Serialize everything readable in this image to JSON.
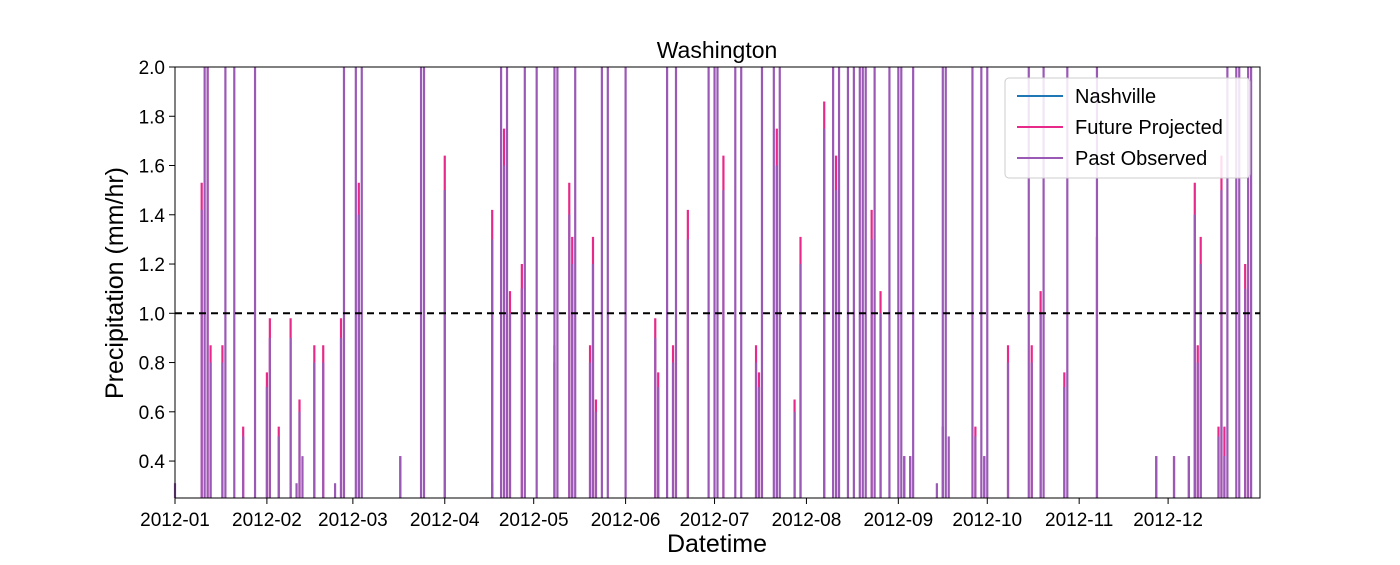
{
  "chart_data": {
    "type": "line",
    "title": "Washington",
    "xlabel": "Datetime",
    "ylabel": "Precipitation (mm/hr)",
    "ylim": [
      0.25,
      2.0
    ],
    "xlim": [
      "2012-01-01",
      "2012-12-31"
    ],
    "yticks": [
      0.4,
      0.6,
      0.8,
      1.0,
      1.2,
      1.4,
      1.6,
      1.8,
      2.0
    ],
    "ytick_labels": [
      "0.4",
      "0.6",
      "0.8",
      "1.0",
      "1.2",
      "1.4",
      "1.6",
      "1.8",
      "2.0"
    ],
    "xticks": [
      "2012-01-01",
      "2012-02-01",
      "2012-03-01",
      "2012-04-01",
      "2012-05-01",
      "2012-06-01",
      "2012-07-01",
      "2012-08-01",
      "2012-09-01",
      "2012-10-01",
      "2012-11-01",
      "2012-12-01"
    ],
    "xtick_labels": [
      "2012-01",
      "2012-02",
      "2012-03",
      "2012-04",
      "2012-05",
      "2012-06",
      "2012-07",
      "2012-08",
      "2012-09",
      "2012-10",
      "2012-11",
      "2012-12"
    ],
    "grid": false,
    "legend_position": "top-right",
    "threshold": {
      "y": 1.0,
      "style": "dashed",
      "color": "#000000"
    },
    "series": [
      {
        "name": "Nashville",
        "color": "#1f77b4",
        "events": []
      },
      {
        "name": "Future Projected",
        "color": "#e7298a",
        "events": [
          {
            "x": "2012-01-10",
            "y": 1.53
          },
          {
            "x": "2012-01-12",
            "y": 2.0
          },
          {
            "x": "2012-01-13",
            "y": 0.87
          },
          {
            "x": "2012-01-17",
            "y": 0.87
          },
          {
            "x": "2012-01-24",
            "y": 0.54
          },
          {
            "x": "2012-02-01",
            "y": 0.76
          },
          {
            "x": "2012-02-02",
            "y": 0.98
          },
          {
            "x": "2012-02-05",
            "y": 0.54
          },
          {
            "x": "2012-02-09",
            "y": 0.98
          },
          {
            "x": "2012-02-12",
            "y": 0.65
          },
          {
            "x": "2012-02-17",
            "y": 0.87
          },
          {
            "x": "2012-02-20",
            "y": 0.87
          },
          {
            "x": "2012-02-26",
            "y": 0.98
          },
          {
            "x": "2012-03-03",
            "y": 1.53
          },
          {
            "x": "2012-03-17",
            "y": 0.42
          },
          {
            "x": "2012-04-01",
            "y": 1.64
          },
          {
            "x": "2012-04-17",
            "y": 1.42
          },
          {
            "x": "2012-04-21",
            "y": 1.75
          },
          {
            "x": "2012-04-23",
            "y": 1.09
          },
          {
            "x": "2012-04-27",
            "y": 1.2
          },
          {
            "x": "2012-05-08",
            "y": 0.87
          },
          {
            "x": "2012-05-13",
            "y": 1.53
          },
          {
            "x": "2012-05-14",
            "y": 1.31
          },
          {
            "x": "2012-05-20",
            "y": 0.87
          },
          {
            "x": "2012-05-21",
            "y": 1.31
          },
          {
            "x": "2012-05-22",
            "y": 0.65
          },
          {
            "x": "2012-06-11",
            "y": 0.98
          },
          {
            "x": "2012-06-12",
            "y": 0.76
          },
          {
            "x": "2012-06-17",
            "y": 0.87
          },
          {
            "x": "2012-06-22",
            "y": 1.42
          },
          {
            "x": "2012-07-04",
            "y": 1.64
          },
          {
            "x": "2012-07-15",
            "y": 0.87
          },
          {
            "x": "2012-07-16",
            "y": 0.76
          },
          {
            "x": "2012-07-22",
            "y": 1.75
          },
          {
            "x": "2012-07-28",
            "y": 0.65
          },
          {
            "x": "2012-07-30",
            "y": 1.31
          },
          {
            "x": "2012-08-07",
            "y": 1.86
          },
          {
            "x": "2012-08-11",
            "y": 1.64
          },
          {
            "x": "2012-08-23",
            "y": 1.42
          },
          {
            "x": "2012-08-26",
            "y": 1.09
          },
          {
            "x": "2012-09-03",
            "y": 0.42
          },
          {
            "x": "2012-09-05",
            "y": 0.42
          },
          {
            "x": "2012-09-16",
            "y": 0.54
          },
          {
            "x": "2012-09-27",
            "y": 0.54
          },
          {
            "x": "2012-09-30",
            "y": 0.42
          },
          {
            "x": "2012-10-08",
            "y": 0.87
          },
          {
            "x": "2012-10-16",
            "y": 0.87
          },
          {
            "x": "2012-10-19",
            "y": 1.09
          },
          {
            "x": "2012-10-27",
            "y": 0.76
          },
          {
            "x": "2012-11-07",
            "y": 1.31
          },
          {
            "x": "2012-11-27",
            "y": 0.42
          },
          {
            "x": "2012-12-03",
            "y": 0.42
          },
          {
            "x": "2012-12-08",
            "y": 0.42
          },
          {
            "x": "2012-12-10",
            "y": 1.53
          },
          {
            "x": "2012-12-11",
            "y": 0.87
          },
          {
            "x": "2012-12-12",
            "y": 1.31
          },
          {
            "x": "2012-12-18",
            "y": 0.54
          },
          {
            "x": "2012-12-19",
            "y": 1.64
          },
          {
            "x": "2012-12-20",
            "y": 0.54
          },
          {
            "x": "2012-12-27",
            "y": 1.2
          }
        ]
      },
      {
        "name": "Past Observed",
        "color": "#9b59b6",
        "events": [
          {
            "x": "2012-01-01",
            "y": 0.31
          },
          {
            "x": "2012-01-10",
            "y": 1.42
          },
          {
            "x": "2012-01-11",
            "y": 2.0
          },
          {
            "x": "2012-01-12",
            "y": 2.0
          },
          {
            "x": "2012-01-13",
            "y": 0.8
          },
          {
            "x": "2012-01-17",
            "y": 0.8
          },
          {
            "x": "2012-01-18",
            "y": 2.0
          },
          {
            "x": "2012-01-21",
            "y": 2.0
          },
          {
            "x": "2012-01-24",
            "y": 0.5
          },
          {
            "x": "2012-01-28",
            "y": 2.0
          },
          {
            "x": "2012-02-01",
            "y": 0.7
          },
          {
            "x": "2012-02-02",
            "y": 0.9
          },
          {
            "x": "2012-02-05",
            "y": 0.5
          },
          {
            "x": "2012-02-09",
            "y": 0.9
          },
          {
            "x": "2012-02-11",
            "y": 0.31
          },
          {
            "x": "2012-02-12",
            "y": 0.6
          },
          {
            "x": "2012-02-13",
            "y": 0.42
          },
          {
            "x": "2012-02-17",
            "y": 0.8
          },
          {
            "x": "2012-02-20",
            "y": 0.8
          },
          {
            "x": "2012-02-24",
            "y": 0.31
          },
          {
            "x": "2012-02-26",
            "y": 0.9
          },
          {
            "x": "2012-02-27",
            "y": 2.0
          },
          {
            "x": "2012-03-02",
            "y": 2.0
          },
          {
            "x": "2012-03-03",
            "y": 1.4
          },
          {
            "x": "2012-03-04",
            "y": 2.0
          },
          {
            "x": "2012-03-17",
            "y": 0.42
          },
          {
            "x": "2012-03-24",
            "y": 2.0
          },
          {
            "x": "2012-03-25",
            "y": 2.0
          },
          {
            "x": "2012-04-01",
            "y": 1.5
          },
          {
            "x": "2012-04-17",
            "y": 1.3
          },
          {
            "x": "2012-04-17",
            "y": 0.31
          },
          {
            "x": "2012-04-20",
            "y": 2.0
          },
          {
            "x": "2012-04-21",
            "y": 1.6
          },
          {
            "x": "2012-04-22",
            "y": 2.0
          },
          {
            "x": "2012-04-23",
            "y": 1.0
          },
          {
            "x": "2012-04-27",
            "y": 1.1
          },
          {
            "x": "2012-04-28",
            "y": 2.0
          },
          {
            "x": "2012-05-02",
            "y": 2.0
          },
          {
            "x": "2012-05-08",
            "y": 0.8
          },
          {
            "x": "2012-05-08",
            "y": 2.0
          },
          {
            "x": "2012-05-09",
            "y": 2.0
          },
          {
            "x": "2012-05-13",
            "y": 1.4
          },
          {
            "x": "2012-05-14",
            "y": 1.2
          },
          {
            "x": "2012-05-15",
            "y": 2.0
          },
          {
            "x": "2012-05-20",
            "y": 0.8
          },
          {
            "x": "2012-05-21",
            "y": 1.2
          },
          {
            "x": "2012-05-22",
            "y": 0.6
          },
          {
            "x": "2012-05-24",
            "y": 2.0
          },
          {
            "x": "2012-05-26",
            "y": 2.0
          },
          {
            "x": "2012-06-01",
            "y": 2.0
          },
          {
            "x": "2012-06-11",
            "y": 0.9
          },
          {
            "x": "2012-06-12",
            "y": 0.7
          },
          {
            "x": "2012-06-15",
            "y": 2.0
          },
          {
            "x": "2012-06-17",
            "y": 0.8
          },
          {
            "x": "2012-06-18",
            "y": 2.0
          },
          {
            "x": "2012-06-22",
            "y": 1.3
          },
          {
            "x": "2012-06-29",
            "y": 2.0
          },
          {
            "x": "2012-07-01",
            "y": 2.0
          },
          {
            "x": "2012-07-02",
            "y": 2.0
          },
          {
            "x": "2012-07-04",
            "y": 1.5
          },
          {
            "x": "2012-07-08",
            "y": 2.0
          },
          {
            "x": "2012-07-10",
            "y": 2.0
          },
          {
            "x": "2012-07-15",
            "y": 0.8
          },
          {
            "x": "2012-07-16",
            "y": 0.7
          },
          {
            "x": "2012-07-17",
            "y": 2.0
          },
          {
            "x": "2012-07-21",
            "y": 2.0
          },
          {
            "x": "2012-07-22",
            "y": 1.6
          },
          {
            "x": "2012-07-23",
            "y": 2.0
          },
          {
            "x": "2012-07-28",
            "y": 0.6
          },
          {
            "x": "2012-07-30",
            "y": 1.2
          },
          {
            "x": "2012-08-07",
            "y": 1.75
          },
          {
            "x": "2012-08-10",
            "y": 2.0
          },
          {
            "x": "2012-08-11",
            "y": 1.5
          },
          {
            "x": "2012-08-12",
            "y": 2.0
          },
          {
            "x": "2012-08-15",
            "y": 2.0
          },
          {
            "x": "2012-08-17",
            "y": 2.0
          },
          {
            "x": "2012-08-19",
            "y": 2.0
          },
          {
            "x": "2012-08-20",
            "y": 2.0
          },
          {
            "x": "2012-08-21",
            "y": 2.0
          },
          {
            "x": "2012-08-23",
            "y": 1.3
          },
          {
            "x": "2012-08-24",
            "y": 2.0
          },
          {
            "x": "2012-08-26",
            "y": 1.0
          },
          {
            "x": "2012-08-29",
            "y": 2.0
          },
          {
            "x": "2012-09-01",
            "y": 2.0
          },
          {
            "x": "2012-09-02",
            "y": 2.0
          },
          {
            "x": "2012-09-03",
            "y": 0.42
          },
          {
            "x": "2012-09-05",
            "y": 0.42
          },
          {
            "x": "2012-09-06",
            "y": 2.0
          },
          {
            "x": "2012-09-14",
            "y": 0.31
          },
          {
            "x": "2012-09-16",
            "y": 2.0
          },
          {
            "x": "2012-09-17",
            "y": 2.0
          },
          {
            "x": "2012-09-18",
            "y": 0.5
          },
          {
            "x": "2012-09-26",
            "y": 2.0
          },
          {
            "x": "2012-09-27",
            "y": 0.5
          },
          {
            "x": "2012-09-29",
            "y": 2.0
          },
          {
            "x": "2012-09-30",
            "y": 0.42
          },
          {
            "x": "2012-10-01",
            "y": 2.0
          },
          {
            "x": "2012-10-08",
            "y": 0.8
          },
          {
            "x": "2012-10-15",
            "y": 2.0
          },
          {
            "x": "2012-10-16",
            "y": 0.8
          },
          {
            "x": "2012-10-19",
            "y": 1.0
          },
          {
            "x": "2012-10-20",
            "y": 2.0
          },
          {
            "x": "2012-10-27",
            "y": 0.7
          },
          {
            "x": "2012-10-28",
            "y": 2.0
          },
          {
            "x": "2012-11-07",
            "y": 2.0
          },
          {
            "x": "2012-11-27",
            "y": 0.42
          },
          {
            "x": "2012-12-03",
            "y": 0.42
          },
          {
            "x": "2012-12-08",
            "y": 0.42
          },
          {
            "x": "2012-12-10",
            "y": 1.4
          },
          {
            "x": "2012-12-11",
            "y": 0.8
          },
          {
            "x": "2012-12-12",
            "y": 1.2
          },
          {
            "x": "2012-12-18",
            "y": 0.5
          },
          {
            "x": "2012-12-19",
            "y": 1.5
          },
          {
            "x": "2012-12-20",
            "y": 0.42
          },
          {
            "x": "2012-12-21",
            "y": 2.0
          },
          {
            "x": "2012-12-24",
            "y": 2.0
          },
          {
            "x": "2012-12-25",
            "y": 2.0
          },
          {
            "x": "2012-12-27",
            "y": 1.1
          },
          {
            "x": "2012-12-28",
            "y": 2.0
          },
          {
            "x": "2012-12-29",
            "y": 2.0
          }
        ]
      }
    ]
  }
}
